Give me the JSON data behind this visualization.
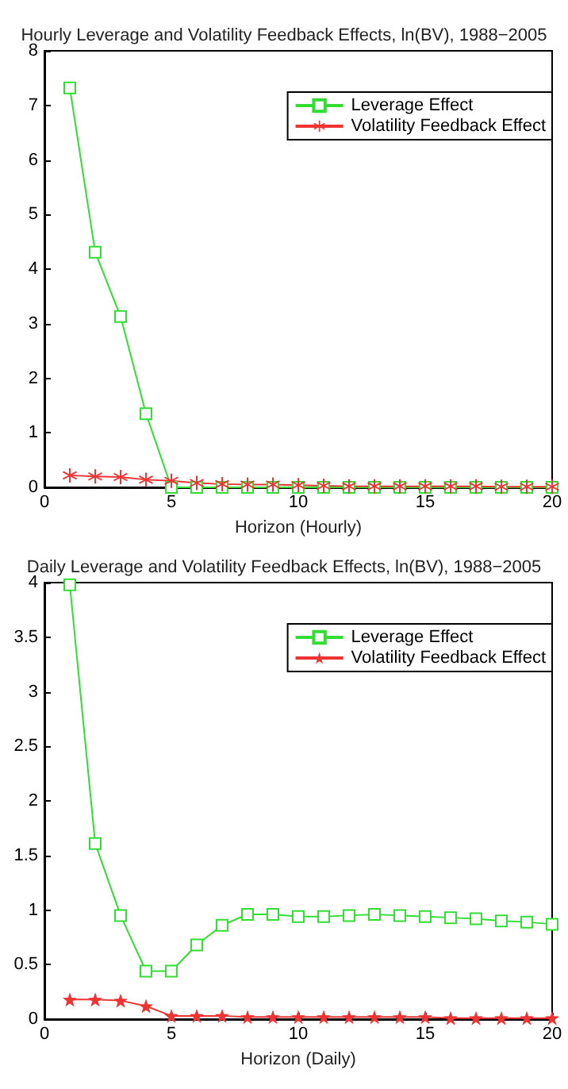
{
  "chart_data": [
    {
      "type": "line",
      "title": "Hourly Leverage and Volatility Feedback Effects, ln(BV), 1988−2005",
      "xlabel": "Horizon (Hourly)",
      "x": [
        1,
        2,
        3,
        4,
        5,
        6,
        7,
        8,
        9,
        10,
        11,
        12,
        13,
        14,
        15,
        16,
        17,
        18,
        19,
        20
      ],
      "series": [
        {
          "name": "Leverage Effect",
          "color": "#33dd33",
          "marker": "square",
          "values": [
            7.32,
            4.31,
            3.13,
            1.35,
            0,
            0,
            0,
            0,
            0,
            0,
            0,
            0,
            0,
            0,
            0,
            0,
            0,
            0,
            0,
            0
          ]
        },
        {
          "name": "Volatility Feedback Effect",
          "color": "#ee3333",
          "marker": "cross",
          "values": [
            0.22,
            0.2,
            0.19,
            0.14,
            0.12,
            0.08,
            0.06,
            0.05,
            0.05,
            0.04,
            0.03,
            0.02,
            0.02,
            0.02,
            0.02,
            0.02,
            0.02,
            0.01,
            0.01,
            0.01
          ]
        }
      ],
      "xlim": [
        0,
        20
      ],
      "xticks": [
        0,
        5,
        10,
        15,
        20
      ],
      "ylim": [
        0,
        8
      ],
      "yticks": [
        0,
        1,
        2,
        3,
        4,
        5,
        6,
        7,
        8
      ],
      "grid": false,
      "legend": "top right",
      "line_style": "solid"
    },
    {
      "type": "line",
      "title": "Daily Leverage and Volatility Feedback Effects, ln(BV), 1988−2005",
      "xlabel": "Horizon (Daily)",
      "x": [
        1,
        2,
        3,
        4,
        5,
        6,
        7,
        8,
        9,
        10,
        11,
        12,
        13,
        14,
        15,
        16,
        17,
        18,
        19,
        20
      ],
      "series": [
        {
          "name": "Leverage Effect",
          "color": "#33dd33",
          "marker": "square",
          "values": [
            3.98,
            1.61,
            0.95,
            0.44,
            0.44,
            0.68,
            0.86,
            0.96,
            0.96,
            0.94,
            0.94,
            0.95,
            0.96,
            0.95,
            0.94,
            0.93,
            0.92,
            0.9,
            0.89,
            0.87
          ]
        },
        {
          "name": "Volatility Feedback Effect",
          "color": "#ee3333",
          "marker": "star",
          "values": [
            0.18,
            0.18,
            0.17,
            0.12,
            0.03,
            0.03,
            0.03,
            0.02,
            0.02,
            0.02,
            0.02,
            0.02,
            0.02,
            0.02,
            0.02,
            0.01,
            0.01,
            0.01,
            0.01,
            0.01
          ]
        }
      ],
      "xlim": [
        0,
        20
      ],
      "xticks": [
        0,
        5,
        10,
        15,
        20
      ],
      "ylim": [
        0,
        4
      ],
      "yticks": [
        0,
        0.5,
        1,
        1.5,
        2,
        2.5,
        3,
        3.5,
        4
      ],
      "grid": false,
      "legend": "top right",
      "line_style": "solid"
    }
  ]
}
